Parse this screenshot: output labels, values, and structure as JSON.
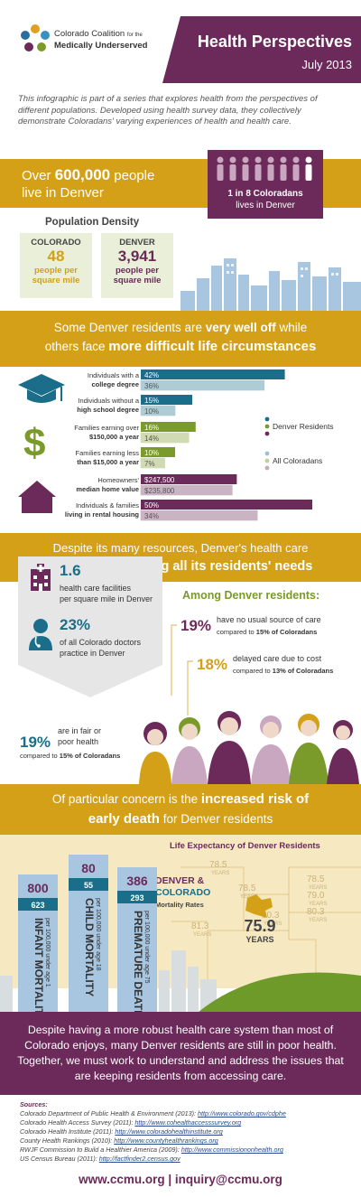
{
  "header": {
    "org_line1": "Colorado Coalition",
    "org_for": "for the",
    "org_line2": "Medically Underserved",
    "title": "Health Perspectives",
    "date": "July 2013"
  },
  "intro": "This infographic is part of a series that explores health from the perspectives of different populations. Developed using health survey data, they collectively demonstrate Coloradans' varying experiences of health and health care.",
  "population": {
    "over_pre": "Over ",
    "over_num": "600,000",
    "over_post": " people",
    "over_line2": "live in Denver",
    "ratio_line1": "1 in 8 Coloradans",
    "ratio_line2": "lives in Denver",
    "density_title": "Population Density",
    "colorado_label": "COLORADO",
    "colorado_value": "48",
    "colorado_unit1": "people per",
    "colorado_unit2": "square mile",
    "denver_label": "DENVER",
    "denver_value": "3,941",
    "denver_unit1": "people per",
    "denver_unit2": "square mile"
  },
  "banner1": {
    "pre": "Some Denver residents are ",
    "bold1": "very well off",
    "mid": " while",
    "line2_pre": "others face ",
    "bold2": "more difficult life circumstances"
  },
  "chart_data": {
    "type": "bar",
    "series_names": [
      "Denver Residents",
      "All Coloradans"
    ],
    "legend_position": "right",
    "groups": [
      {
        "label1": "Individuals with a",
        "label2": "college degree",
        "denver": 42,
        "colorado": 36,
        "denver_label": "42%",
        "colorado_label": "36%",
        "color": "#1a6e8a"
      },
      {
        "label1": "Individuals without a",
        "label2": "high school degree",
        "denver": 15,
        "colorado": 10,
        "denver_label": "15%",
        "colorado_label": "10%",
        "color": "#1a6e8a"
      },
      {
        "label1": "Families earning over",
        "label2": "$150,000 a year",
        "denver": 16,
        "colorado": 14,
        "denver_label": "16%",
        "colorado_label": "14%",
        "color": "#7a9a2a"
      },
      {
        "label1": "Families earning less",
        "label2": "than $15,000 a year",
        "denver": 10,
        "colorado": 7,
        "denver_label": "10%",
        "colorado_label": "7%",
        "color": "#7a9a2a"
      },
      {
        "label1": "Homeowners'",
        "label2": "median home value",
        "denver": 247500,
        "colorado": 235800,
        "denver_label": "$247,500",
        "colorado_label": "$235,800",
        "color": "#6b2a5a"
      },
      {
        "label1": "Individuals & families",
        "label2": "living in rental housing",
        "denver": 50,
        "colorado": 34,
        "denver_label": "50%",
        "colorado_label": "34%",
        "color": "#6b2a5a"
      }
    ],
    "legend_denver": "Denver Residents",
    "legend_colorado": "All Coloradans"
  },
  "banner2": {
    "line1": "Despite its many resources, Denver's health care",
    "line2_pre": "system ",
    "line2_bold": "isn't meeting all its residents' needs"
  },
  "needs": {
    "facilities_value": "1.6",
    "facilities_text1": "health care facilities",
    "facilities_text2": "per square mile in Denver",
    "doctors_value": "23%",
    "doctors_text1": "of all Colorado doctors",
    "doctors_text2": "practice in Denver",
    "among_title": "Among Denver residents:",
    "stat1_value": "19%",
    "stat1_text": "have no usual source of care",
    "stat1_cmp_pre": "compared to ",
    "stat1_cmp_bold": "15%  of Coloradans",
    "stat2_value": "18%",
    "stat2_text": "delayed care due to cost",
    "stat2_cmp_pre": "compared to ",
    "stat2_cmp_bold": "13% of Coloradans",
    "stat3_value": "19%",
    "stat3_text1": "are in fair or",
    "stat3_text2": "poor health",
    "stat3_cmp_pre": "compared to ",
    "stat3_cmp_bold": "15%  of Coloradans"
  },
  "banner3": {
    "pre": "Of particular concern is the ",
    "bold1": "increased risk of",
    "bold2": "early death",
    "post": " for Denver residents"
  },
  "mortality": {
    "life_title": "Life Expectancy of Denver Residents",
    "legend_line1": "DENVER &",
    "legend_line2": "COLORADO",
    "legend_line3": "Mortality Rates",
    "columns": [
      {
        "denver": "800",
        "colorado": "623",
        "name": "INFANT MORTALITY",
        "sub": "per 100,000 under age 1",
        "denver_value": 800,
        "colorado_value": 623
      },
      {
        "denver": "80",
        "colorado": "55",
        "name": "CHILD MORTALITY",
        "sub": "per 100,000 under age 18",
        "denver_value": 80,
        "colorado_value": 55
      },
      {
        "denver": "386",
        "colorado": "293",
        "name": "PREMATURE DEATH",
        "sub": "per 100,000 under age 75",
        "denver_value": 386,
        "colorado_value": 293
      }
    ],
    "map_values": [
      "78.5",
      "78.5",
      "78.5",
      "79.0",
      "80.3",
      "81.3",
      "80.3"
    ],
    "years_label": "YEARS",
    "highlight_value": "75.9",
    "highlight_unit": "YEARS"
  },
  "closing": "Despite having a more robust health care system than most of Colorado enjoys, many Denver residents are still in poor health. Together, we must work to understand and address the issues that are keeping residents from accessing care.",
  "sources": {
    "title": "Sources:",
    "items": [
      {
        "text": "Colorado Department of Public Health & Environment (2013): ",
        "link": "http://www.colorado.gov/cdphe"
      },
      {
        "text": "Colorado Health Access Survey (2011): ",
        "link": "http://www.cohealthaccesssurvey.org"
      },
      {
        "text": "Colorado Health Institute (2011): ",
        "link": "http://www.coloradohealthinstitute.org"
      },
      {
        "text": "County Health Rankings (2010): ",
        "link": "http://www.countyhealthrankings.org"
      },
      {
        "text": "RWJF Commission to Build a Healthier America (2009): ",
        "link": "http://www.commissiononhealth.org"
      },
      {
        "text": "US Census Bureau (2011): ",
        "link": "http://factfinder2.census.gov"
      }
    ]
  },
  "footer": "www.ccmu.org | inquiry@ccmu.org",
  "colors": {
    "gold": "#d4a017",
    "purple": "#6b2a5a",
    "teal": "#1a6e8a",
    "green": "#7a9a2a",
    "sky": "#a9c6e0",
    "sand": "#f6e9c2"
  }
}
